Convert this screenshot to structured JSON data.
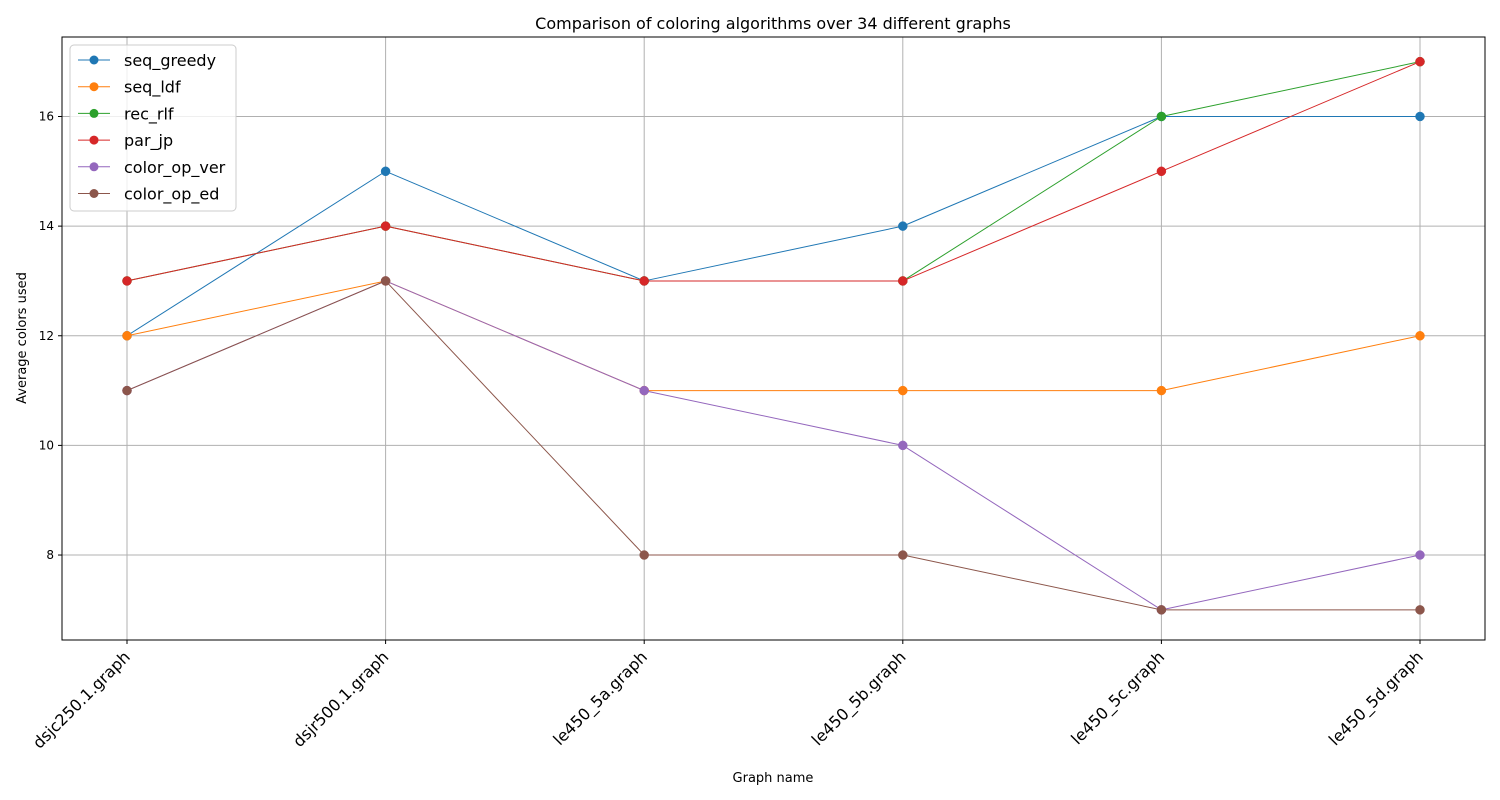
{
  "chart_data": {
    "type": "line",
    "title": "Comparison of coloring algorithms over 34 different graphs",
    "xlabel": "Graph name",
    "ylabel": "Average colors used",
    "categories": [
      "dsjc250.1.graph",
      "dsjr500.1.graph",
      "le450_5a.graph",
      "le450_5b.graph",
      "le450_5c.graph",
      "le450_5d.graph"
    ],
    "ylim": [
      6.45,
      17.45
    ],
    "yticks": [
      8,
      10,
      12,
      14,
      16
    ],
    "grid": true,
    "legend_position": "upper-left",
    "series": [
      {
        "name": "seq_greedy",
        "color": "#1f77b4",
        "values": [
          12,
          15,
          13,
          14,
          16,
          16
        ]
      },
      {
        "name": "seq_ldf",
        "color": "#ff7f0e",
        "values": [
          12,
          13,
          11,
          11,
          11,
          12
        ]
      },
      {
        "name": "rec_rlf",
        "color": "#2ca02c",
        "values": [
          13,
          14,
          13,
          13,
          16,
          17
        ]
      },
      {
        "name": "par_jp",
        "color": "#d62728",
        "values": [
          13,
          14,
          13,
          13,
          15,
          17
        ]
      },
      {
        "name": "color_op_ver",
        "color": "#9467bd",
        "values": [
          11,
          13,
          11,
          10,
          7,
          8
        ]
      },
      {
        "name": "color_op_ed",
        "color": "#8c564b",
        "values": [
          11,
          13,
          8,
          8,
          7,
          7
        ]
      }
    ]
  }
}
